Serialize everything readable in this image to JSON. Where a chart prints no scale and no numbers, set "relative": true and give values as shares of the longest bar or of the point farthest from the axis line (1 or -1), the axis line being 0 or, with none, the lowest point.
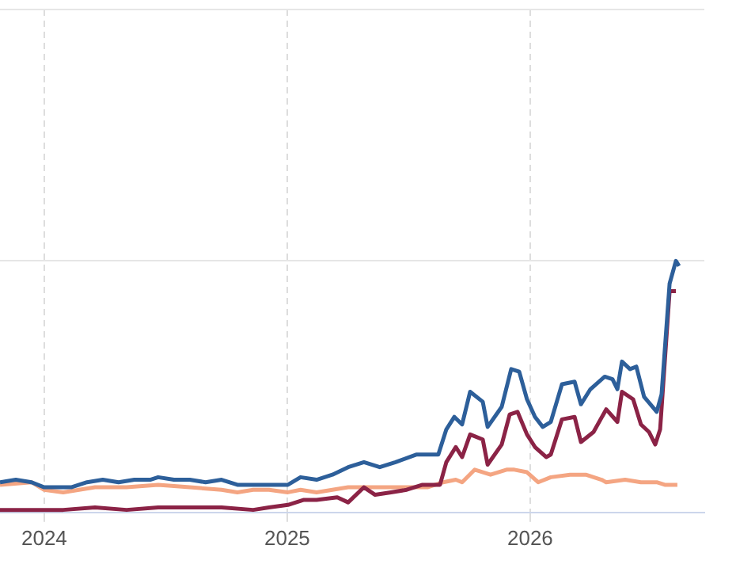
{
  "chart_data": {
    "type": "line",
    "relative": true,
    "xlim": [
      2023.818,
      2026.717
    ],
    "xticks": [
      2024,
      2025,
      2026
    ],
    "grid": true,
    "tick_labels": "x",
    "marker": "none",
    "line_style": "solid",
    "series": [
      {
        "color": "#2d5f9a",
        "x": [
          2023.818,
          2023.883,
          2023.948,
          2024.0,
          2024.046,
          2024.111,
          2024.176,
          2024.241,
          2024.306,
          2024.371,
          2024.436,
          2024.469,
          2024.534,
          2024.599,
          2024.664,
          2024.73,
          2024.795,
          2024.86,
          2024.925,
          2025.003,
          2025.055,
          2025.121,
          2025.186,
          2025.251,
          2025.316,
          2025.381,
          2025.446,
          2025.531,
          2025.622,
          2025.655,
          2025.688,
          2025.72,
          2025.753,
          2025.805,
          2025.825,
          2025.883,
          2025.922,
          2025.955,
          2025.987,
          2026.02,
          2026.052,
          2026.085,
          2026.131,
          2026.183,
          2026.209,
          2026.248,
          2026.307,
          2026.339,
          2026.359,
          2026.378,
          2026.411,
          2026.437,
          2026.469,
          2026.521,
          2026.541,
          2026.574,
          2026.6,
          2026.613
        ],
        "values": [
          0.12,
          0.13,
          0.12,
          0.1,
          0.1,
          0.1,
          0.12,
          0.13,
          0.12,
          0.13,
          0.13,
          0.14,
          0.13,
          0.13,
          0.12,
          0.13,
          0.11,
          0.11,
          0.11,
          0.11,
          0.14,
          0.13,
          0.15,
          0.18,
          0.2,
          0.18,
          0.2,
          0.23,
          0.23,
          0.33,
          0.38,
          0.35,
          0.48,
          0.44,
          0.34,
          0.42,
          0.57,
          0.56,
          0.45,
          0.38,
          0.34,
          0.36,
          0.51,
          0.52,
          0.43,
          0.49,
          0.54,
          0.53,
          0.49,
          0.6,
          0.57,
          0.58,
          0.46,
          0.4,
          0.47,
          0.91,
          1,
          0.98
        ]
      },
      {
        "color": "#8b2346",
        "x": [
          2023.818,
          2023.948,
          2024.078,
          2024.209,
          2024.339,
          2024.469,
          2024.599,
          2024.73,
          2024.86,
          2024.925,
          2025.003,
          2025.069,
          2025.121,
          2025.206,
          2025.251,
          2025.316,
          2025.362,
          2025.427,
          2025.492,
          2025.557,
          2025.629,
          2025.655,
          2025.694,
          2025.72,
          2025.753,
          2025.805,
          2025.825,
          2025.883,
          2025.916,
          2025.948,
          2025.987,
          2026.02,
          2026.066,
          2026.085,
          2026.131,
          2026.183,
          2026.209,
          2026.261,
          2026.313,
          2026.359,
          2026.378,
          2026.424,
          2026.456,
          2026.489,
          2026.515,
          2026.535,
          2026.574,
          2026.6
        ],
        "values": [
          0.01,
          0.01,
          0.01,
          0.02,
          0.01,
          0.02,
          0.02,
          0.02,
          0.01,
          0.02,
          0.03,
          0.05,
          0.05,
          0.06,
          0.04,
          0.1,
          0.07,
          0.08,
          0.09,
          0.11,
          0.11,
          0.2,
          0.26,
          0.22,
          0.31,
          0.29,
          0.19,
          0.27,
          0.39,
          0.4,
          0.31,
          0.26,
          0.22,
          0.23,
          0.37,
          0.38,
          0.28,
          0.32,
          0.41,
          0.36,
          0.48,
          0.45,
          0.35,
          0.32,
          0.27,
          0.33,
          0.88,
          0.88
        ]
      },
      {
        "color": "#f4a582",
        "x": [
          2023.818,
          2023.948,
          2024.0,
          2024.078,
          2024.209,
          2024.339,
          2024.469,
          2024.599,
          2024.73,
          2024.795,
          2024.86,
          2024.925,
          2025.003,
          2025.055,
          2025.121,
          2025.186,
          2025.251,
          2025.316,
          2025.381,
          2025.446,
          2025.512,
          2025.577,
          2025.642,
          2025.694,
          2025.72,
          2025.772,
          2025.837,
          2025.903,
          2025.935,
          2025.987,
          2026.033,
          2026.085,
          2026.164,
          2026.229,
          2026.294,
          2026.313,
          2026.391,
          2026.456,
          2026.521,
          2026.554,
          2026.606
        ],
        "values": [
          0.11,
          0.12,
          0.09,
          0.08,
          0.1,
          0.1,
          0.11,
          0.1,
          0.09,
          0.08,
          0.09,
          0.09,
          0.08,
          0.09,
          0.08,
          0.09,
          0.1,
          0.1,
          0.1,
          0.1,
          0.1,
          0.1,
          0.12,
          0.13,
          0.12,
          0.17,
          0.15,
          0.17,
          0.17,
          0.16,
          0.12,
          0.14,
          0.15,
          0.15,
          0.13,
          0.12,
          0.13,
          0.12,
          0.12,
          0.11,
          0.11
        ]
      }
    ]
  }
}
